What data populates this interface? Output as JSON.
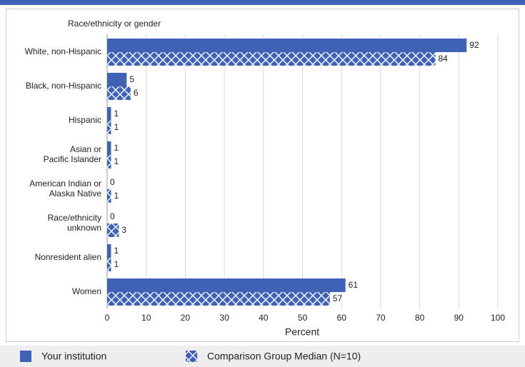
{
  "chart_data": {
    "type": "bar",
    "orientation": "horizontal",
    "title": "Race/ethnicity or gender",
    "x_label": "Percent",
    "categories": [
      "White, non-Hispanic",
      "Black, non-Hispanic",
      "Hispanic",
      "Asian or\nPacific Islander",
      "American Indian or\nAlaska Native",
      "Race/ethnicity\nunknown",
      "Nonresident alien",
      "Women"
    ],
    "series": [
      {
        "name": "Your institution",
        "color": "#3f62b5",
        "pattern": "solid",
        "values": [
          92,
          5,
          1,
          1,
          0,
          0,
          1,
          61
        ]
      },
      {
        "name": "Comparison Group Median (N=10)",
        "color": "#3f62b5",
        "pattern": "crosshatch",
        "values": [
          84,
          6,
          1,
          1,
          1,
          3,
          1,
          57
        ]
      }
    ],
    "xlim": [
      0,
      100
    ],
    "xticks": [
      0,
      10,
      20,
      30,
      40,
      50,
      60,
      70,
      80,
      90,
      100
    ],
    "grid": true,
    "legend": "bottom"
  }
}
